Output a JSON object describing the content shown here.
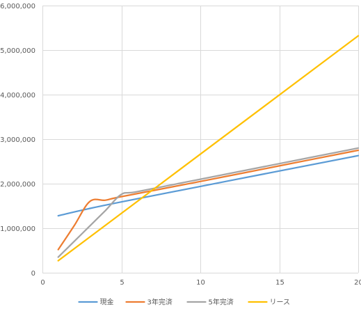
{
  "chart_data": {
    "type": "line",
    "title": "",
    "xlabel": "",
    "ylabel": "",
    "xlim": [
      0,
      20
    ],
    "ylim": [
      0,
      6000000
    ],
    "x_ticks": [
      0,
      5,
      10,
      15,
      20
    ],
    "x_tick_labels": [
      "0",
      "5",
      "10",
      "15",
      "20"
    ],
    "y_ticks": [
      0,
      1000000,
      2000000,
      3000000,
      4000000,
      5000000,
      6000000
    ],
    "y_tick_labels": [
      "0",
      "1,000,000",
      "2,000,000",
      "3,000,000",
      "4,000,000",
      "5,000,000",
      "6,000,000"
    ],
    "grid": true,
    "legend_position": "bottom",
    "series": [
      {
        "name": "現金",
        "color": "#5B9BD5",
        "x": [
          1,
          5,
          20
        ],
        "y": [
          1280000,
          1590000,
          2630000
        ]
      },
      {
        "name": "3年完済",
        "color": "#ED7D31",
        "x": [
          1,
          2,
          3,
          4,
          5,
          10,
          15,
          20
        ],
        "y": [
          520000,
          1050000,
          1600000,
          1630000,
          1710000,
          2050000,
          2400000,
          2750000
        ]
      },
      {
        "name": "5年完済",
        "color": "#A5A5A5",
        "x": [
          1,
          2,
          3,
          4,
          5,
          6,
          10,
          15,
          20
        ],
        "y": [
          350000,
          700000,
          1050000,
          1400000,
          1760000,
          1820000,
          2100000,
          2450000,
          2800000
        ]
      },
      {
        "name": "リース",
        "color": "#FFC000",
        "x": [
          1,
          20
        ],
        "y": [
          270000,
          5320000
        ]
      }
    ]
  }
}
